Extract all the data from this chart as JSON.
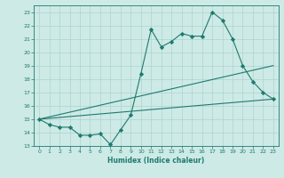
{
  "xlabel": "Humidex (Indice chaleur)",
  "ylabel": "",
  "background_color": "#cdeae6",
  "grid_color": "#aed4cf",
  "line_color": "#1e7a6e",
  "x_values": [
    0,
    1,
    2,
    3,
    4,
    5,
    6,
    7,
    8,
    9,
    10,
    11,
    12,
    13,
    14,
    15,
    16,
    17,
    18,
    19,
    20,
    21,
    22,
    23
  ],
  "line1_y": [
    15.0,
    14.6,
    14.4,
    14.4,
    13.8,
    13.8,
    13.9,
    13.1,
    14.2,
    15.3,
    18.4,
    21.7,
    20.4,
    20.8,
    21.4,
    21.2,
    21.2,
    23.0,
    22.4,
    21.0,
    19.0,
    17.8,
    17.0,
    16.5
  ],
  "line2_x": [
    0,
    23
  ],
  "line2_y": [
    15.0,
    19.0
  ],
  "line3_x": [
    0,
    23
  ],
  "line3_y": [
    15.0,
    16.5
  ],
  "xlim": [
    -0.5,
    23.5
  ],
  "ylim": [
    13.0,
    23.5
  ],
  "yticks": [
    13,
    14,
    15,
    16,
    17,
    18,
    19,
    20,
    21,
    22,
    23
  ],
  "xticks": [
    0,
    1,
    2,
    3,
    4,
    5,
    6,
    7,
    8,
    9,
    10,
    11,
    12,
    13,
    14,
    15,
    16,
    17,
    18,
    19,
    20,
    21,
    22,
    23
  ]
}
